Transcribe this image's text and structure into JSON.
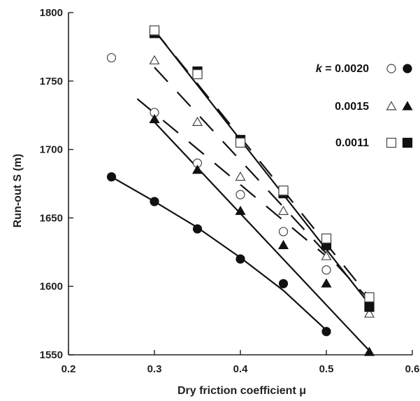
{
  "chart_data": {
    "type": "scatter",
    "xlabel": "Dry friction coefficient μ",
    "ylabel": "Run-out S (m)",
    "xlim": [
      0.2,
      0.6
    ],
    "ylim": [
      1550,
      1800
    ],
    "x_ticks": [
      "0.2",
      "0.3",
      "0.4",
      "0.5",
      "0.6"
    ],
    "y_ticks": [
      "1550",
      "1600",
      "1650",
      "1700",
      "1750",
      "1800"
    ],
    "grid": false,
    "legend_position": "top-right",
    "legend": [
      {
        "label_prefix": "k",
        "label": " = 0.0020",
        "open_marker": "circle",
        "filled_marker": "circle"
      },
      {
        "label": "0.0015",
        "open_marker": "triangle",
        "filled_marker": "triangle"
      },
      {
        "label": "0.0011",
        "open_marker": "square",
        "filled_marker": "square"
      }
    ],
    "series": [
      {
        "k": "0.0020",
        "style": "filled",
        "marker": "circle",
        "x": [
          0.25,
          0.3,
          0.35,
          0.4,
          0.45,
          0.5
        ],
        "y": [
          1680,
          1662,
          1642,
          1620,
          1602,
          1567
        ],
        "fit": {
          "line": "solid",
          "points": [
            [
              0.25,
              1680
            ],
            [
              0.3,
              1662
            ],
            [
              0.35,
              1643
            ],
            [
              0.4,
              1621
            ],
            [
              0.45,
              1597
            ],
            [
              0.5,
              1568
            ]
          ]
        }
      },
      {
        "k": "0.0020",
        "style": "open",
        "marker": "circle",
        "x": [
          0.25,
          0.3,
          0.35,
          0.4,
          0.45,
          0.5
        ],
        "y": [
          1767,
          1727,
          1690,
          1667,
          1640,
          1612
        ],
        "fit": {
          "line": "dashed",
          "points": [
            [
              0.28,
              1737
            ],
            [
              0.5,
              1622
            ]
          ]
        }
      },
      {
        "k": "0.0015",
        "style": "filled",
        "marker": "triangle",
        "x": [
          0.3,
          0.35,
          0.4,
          0.45,
          0.5,
          0.55
        ],
        "y": [
          1722,
          1685,
          1655,
          1630,
          1602,
          1552
        ],
        "fit": {
          "line": "solid",
          "points": [
            [
              0.3,
              1720
            ],
            [
              0.55,
              1553
            ]
          ]
        }
      },
      {
        "k": "0.0015",
        "style": "open",
        "marker": "triangle",
        "x": [
          0.3,
          0.35,
          0.4,
          0.45,
          0.5,
          0.55
        ],
        "y": [
          1765,
          1720,
          1680,
          1655,
          1622,
          1580
        ],
        "fit": {
          "line": "dashed",
          "points": [
            [
              0.3,
              1760
            ],
            [
              0.55,
              1590
            ]
          ]
        }
      },
      {
        "k": "0.0011",
        "style": "filled",
        "marker": "square",
        "x": [
          0.3,
          0.35,
          0.4,
          0.45,
          0.5,
          0.55
        ],
        "y": [
          1785,
          1757,
          1707,
          1668,
          1630,
          1585
        ],
        "fit": {
          "line": "solid",
          "points": [
            [
              0.3,
              1787
            ],
            [
              0.55,
              1587
            ]
          ]
        }
      },
      {
        "k": "0.0011",
        "style": "open",
        "marker": "square",
        "x": [
          0.3,
          0.35,
          0.4,
          0.45,
          0.5,
          0.55
        ],
        "y": [
          1787,
          1755,
          1705,
          1670,
          1635,
          1592
        ],
        "fit": {
          "line": "dashed",
          "points": [
            [
              0.3,
              1787
            ],
            [
              0.55,
              1592
            ]
          ]
        }
      }
    ]
  }
}
